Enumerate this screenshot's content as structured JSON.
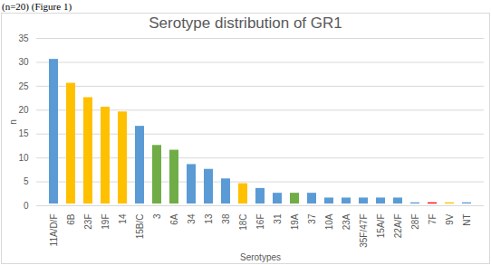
{
  "chart_data": {
    "type": "bar",
    "title": "Serotype distribution of GR1",
    "annotations": [
      "(n=20) (Figure 1)"
    ],
    "x_label": "Serotypes",
    "y_label": "n",
    "categories": [
      "11A/D/F",
      "6B",
      "23F",
      "19F",
      "14",
      "15B/C",
      "3",
      "6A",
      "34",
      "13",
      "38",
      "18C",
      "16F",
      "31",
      "19A",
      "37",
      "10A",
      "23A",
      "35F/47F",
      "15A/F",
      "22A/F",
      "28F",
      "7F",
      "9V",
      "NT"
    ],
    "values": [
      31,
      26,
      23,
      21,
      20,
      17,
      13,
      12,
      9,
      8,
      6,
      5,
      4,
      3,
      3,
      3,
      2,
      2,
      2,
      2,
      2,
      1,
      1,
      1,
      1
    ],
    "colors": [
      "#5b9bd5",
      "#ffc000",
      "#ffc000",
      "#ffc000",
      "#ffc000",
      "#5b9bd5",
      "#70ad47",
      "#70ad47",
      "#5b9bd5",
      "#5b9bd5",
      "#5b9bd5",
      "#ffc000",
      "#5b9bd5",
      "#5b9bd5",
      "#70ad47",
      "#5b9bd5",
      "#5b9bd5",
      "#5b9bd5",
      "#5b9bd5",
      "#5b9bd5",
      "#5b9bd5",
      "#5b9bd5",
      "#ff0000",
      "#ffc000",
      "#5b9bd5"
    ],
    "ylim": [
      0,
      35
    ],
    "yticks": [
      0,
      5,
      10,
      15,
      20,
      25,
      30,
      35
    ],
    "grid": true
  }
}
